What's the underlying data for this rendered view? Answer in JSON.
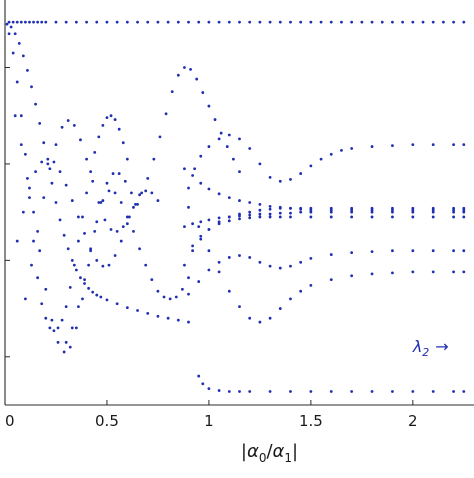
{
  "chart_data": {
    "type": "scatter",
    "title": "",
    "xlabel": "|α0/α1|",
    "xlabel_parts": {
      "bar_left": "|",
      "alpha": "α",
      "sub0": "0",
      "slash": "/",
      "alpha2": "α",
      "sub1": "1",
      "bar_right": "|"
    },
    "ylabel": "",
    "xlim": [
      0,
      2.3
    ],
    "ylim": [
      -2.0,
      2.2
    ],
    "grid": false,
    "x_ticks": [
      0,
      0.5,
      1,
      1.5,
      2
    ],
    "x_tick_labels": [
      "0",
      "0.5",
      "1",
      "1.5",
      "2"
    ],
    "y_ticks": [
      -1.5,
      -0.5,
      0.5,
      1.5
    ],
    "marker_color": "#1f2fb0",
    "annotation": {
      "text": "λ2 → ",
      "lambda": "λ",
      "sub": "2",
      "arrow": "→",
      "x": 2.0,
      "y": -1.45
    },
    "series": [
      {
        "x": [
          0.02,
          0.04,
          0.06,
          0.08,
          0.1,
          0.12,
          0.14,
          0.16,
          0.18,
          0.2,
          0.25,
          0.3,
          0.35,
          0.4,
          0.45,
          0.5,
          0.55,
          0.6,
          0.65,
          0.7,
          0.75,
          0.8,
          0.85,
          0.9,
          0.95,
          1.0,
          1.05,
          1.1,
          1.15,
          1.2,
          1.25,
          1.3,
          1.35,
          1.4,
          1.45,
          1.5,
          1.55,
          1.6,
          1.65,
          1.7,
          1.75,
          1.8,
          1.85,
          1.9,
          1.95,
          2.0,
          2.05,
          2.1,
          2.15,
          2.2,
          2.25
        ],
        "y": [
          1.97,
          1.97,
          1.97,
          1.97,
          1.97,
          1.97,
          1.97,
          1.97,
          1.97,
          1.97,
          1.97,
          1.97,
          1.97,
          1.97,
          1.97,
          1.97,
          1.97,
          1.97,
          1.97,
          1.97,
          1.97,
          1.97,
          1.97,
          1.97,
          1.97,
          1.97,
          1.97,
          1.97,
          1.97,
          1.97,
          1.97,
          1.97,
          1.97,
          1.97,
          1.97,
          1.97,
          1.97,
          1.97,
          1.97,
          1.97,
          1.97,
          1.97,
          1.97,
          1.97,
          1.97,
          1.97,
          1.97,
          1.97,
          1.97,
          1.97,
          1.97
        ]
      },
      {
        "x": [
          0.01,
          0.03,
          0.05,
          0.07,
          0.09,
          0.11,
          0.13,
          0.15,
          0.17,
          0.19,
          0.21,
          0.23,
          0.25,
          0.27,
          0.29,
          0.31,
          0.33,
          0.35,
          0.37,
          0.39,
          0.41,
          0.43,
          0.45,
          0.47,
          0.5,
          0.55,
          0.6,
          0.65,
          0.7,
          0.75,
          0.8,
          0.85,
          0.9
        ],
        "y": [
          1.95,
          1.92,
          1.85,
          1.75,
          1.62,
          1.47,
          1.3,
          1.12,
          0.92,
          0.72,
          0.5,
          0.3,
          0.1,
          -0.08,
          -0.24,
          -0.38,
          -0.5,
          -0.6,
          -0.68,
          -0.74,
          -0.79,
          -0.83,
          -0.86,
          -0.88,
          -0.91,
          -0.95,
          -0.99,
          -1.02,
          -1.05,
          -1.08,
          -1.1,
          -1.12,
          -1.14
        ]
      },
      {
        "x": [
          0.95,
          0.97,
          1.0,
          1.05,
          1.1,
          1.15,
          1.2,
          1.3,
          1.4,
          1.5,
          1.6,
          1.7,
          1.8,
          1.9,
          2.0,
          2.1,
          2.2,
          2.25
        ],
        "y": [
          -1.7,
          -1.78,
          -1.83,
          -1.85,
          -1.86,
          -1.86,
          -1.86,
          -1.86,
          -1.86,
          -1.86,
          -1.86,
          -1.86,
          -1.86,
          -1.86,
          -1.86,
          -1.86,
          -1.86,
          -1.86
        ]
      },
      {
        "x": [
          0.02,
          0.04,
          0.06,
          0.08,
          0.1,
          0.12,
          0.14,
          0.16,
          0.18,
          0.2,
          0.22,
          0.24,
          0.26,
          0.28,
          0.3,
          0.32,
          0.34,
          0.36,
          0.38,
          0.4,
          0.42,
          0.44,
          0.46,
          0.48,
          0.5,
          0.52,
          0.54,
          0.56,
          0.58,
          0.6
        ],
        "y": [
          1.85,
          1.65,
          1.35,
          1.0,
          0.6,
          0.15,
          -0.3,
          -0.68,
          -0.95,
          -1.1,
          -1.2,
          -1.23,
          -1.2,
          -1.12,
          -0.98,
          -0.78,
          -0.55,
          -0.3,
          -0.05,
          0.2,
          0.42,
          0.62,
          0.78,
          0.9,
          0.98,
          1.0,
          0.96,
          0.86,
          0.72,
          0.55
        ]
      },
      {
        "x": [
          0.05,
          0.08,
          0.11,
          0.14,
          0.17,
          0.2,
          0.23,
          0.26,
          0.29,
          0.32,
          0.35,
          0.38,
          0.41,
          0.44,
          0.47,
          0.5,
          0.53,
          0.56,
          0.59,
          0.62,
          0.65
        ],
        "y": [
          1.0,
          0.7,
          0.35,
          0.0,
          -0.4,
          -0.8,
          -1.12,
          -1.35,
          -1.45,
          -1.4,
          -1.2,
          -0.9,
          -0.55,
          -0.2,
          0.1,
          0.3,
          0.4,
          0.4,
          0.32,
          0.2,
          0.08
        ]
      },
      {
        "x": [
          0.06,
          0.09,
          0.12,
          0.15,
          0.18,
          0.21,
          0.24,
          0.27,
          0.3,
          0.33,
          0.36,
          0.39,
          0.42,
          0.45,
          0.48,
          0.51,
          0.54,
          0.57,
          0.6,
          0.63,
          0.66,
          0.69,
          0.72,
          0.75
        ],
        "y": [
          -0.3,
          0.0,
          0.25,
          0.42,
          0.52,
          0.55,
          0.52,
          0.42,
          0.28,
          0.12,
          -0.05,
          -0.22,
          -0.38,
          -0.5,
          -0.56,
          -0.55,
          -0.45,
          -0.3,
          -0.12,
          0.05,
          0.18,
          0.22,
          0.2,
          0.12
        ]
      },
      {
        "x": [
          0.1,
          0.13,
          0.16,
          0.19,
          0.22,
          0.25,
          0.28,
          0.31,
          0.34,
          0.37,
          0.4,
          0.43,
          0.46,
          0.49,
          0.52,
          0.55,
          0.58,
          0.61,
          0.64,
          0.67,
          0.7,
          0.73,
          0.76,
          0.79,
          0.82,
          0.85,
          0.88,
          0.91,
          0.94,
          0.97,
          1.0,
          1.03,
          1.06,
          1.09,
          1.12,
          1.15
        ],
        "y": [
          -0.9,
          -0.55,
          -0.2,
          0.15,
          0.45,
          0.7,
          0.88,
          0.95,
          0.9,
          0.75,
          0.55,
          0.32,
          0.1,
          -0.08,
          -0.18,
          -0.2,
          -0.15,
          -0.05,
          0.08,
          0.2,
          0.35,
          0.55,
          0.78,
          1.02,
          1.25,
          1.42,
          1.5,
          1.48,
          1.38,
          1.24,
          1.1,
          0.96,
          0.82,
          0.68,
          0.55,
          0.42
        ]
      },
      {
        "x": [
          0.3,
          0.33,
          0.36,
          0.39,
          0.42,
          0.45,
          0.48,
          0.51,
          0.54,
          0.57,
          0.6,
          0.63,
          0.66,
          0.69,
          0.72,
          0.75,
          0.78,
          0.81,
          0.84,
          0.87,
          0.9
        ],
        "y": [
          -1.35,
          -1.2,
          -0.98,
          -0.7,
          -0.4,
          -0.1,
          0.12,
          0.22,
          0.2,
          0.1,
          -0.05,
          -0.2,
          -0.38,
          -0.55,
          -0.7,
          -0.82,
          -0.88,
          -0.9,
          -0.88,
          -0.8,
          -0.68
        ]
      },
      {
        "x": [
          0.9,
          0.93,
          0.96,
          1.0,
          1.05,
          1.1,
          1.15,
          1.2,
          1.25,
          1.3,
          1.35,
          1.4,
          1.45,
          1.5,
          1.55,
          1.6,
          1.65,
          1.7,
          1.8,
          1.9,
          2.0,
          2.1,
          2.2,
          2.25
        ],
        "y": [
          0.25,
          0.45,
          0.58,
          0.68,
          0.76,
          0.8,
          0.76,
          0.66,
          0.5,
          0.36,
          0.32,
          0.34,
          0.4,
          0.48,
          0.55,
          0.6,
          0.64,
          0.66,
          0.68,
          0.69,
          0.7,
          0.7,
          0.7,
          0.7
        ]
      },
      {
        "x": [
          0.88,
          0.92,
          0.96,
          1.0,
          1.05,
          1.1,
          1.15,
          1.2,
          1.25,
          1.3,
          1.35,
          1.4,
          1.45,
          1.5,
          1.6,
          1.7,
          1.8,
          1.9,
          2.0,
          2.1,
          2.2,
          2.25
        ],
        "y": [
          -0.55,
          -0.4,
          -0.28,
          -0.18,
          -0.1,
          -0.05,
          -0.02,
          0.0,
          0.02,
          0.03,
          0.04,
          0.04,
          0.04,
          0.04,
          0.04,
          0.04,
          0.04,
          0.04,
          0.04,
          0.04,
          0.04,
          0.04
        ]
      },
      {
        "x": [
          0.88,
          0.92,
          0.96,
          1.0,
          1.05,
          1.1,
          1.15,
          1.2,
          1.25,
          1.3,
          1.35,
          1.4,
          1.45,
          1.5,
          1.6,
          1.7,
          1.8,
          1.9,
          2.0,
          2.1,
          2.2,
          2.25
        ],
        "y": [
          0.45,
          0.38,
          0.3,
          0.24,
          0.19,
          0.15,
          0.12,
          0.1,
          0.08,
          0.06,
          0.05,
          0.04,
          0.03,
          0.02,
          0.02,
          0.02,
          0.02,
          0.02,
          0.02,
          0.02,
          0.02,
          0.02
        ]
      },
      {
        "x": [
          0.88,
          0.92,
          0.96,
          1.0,
          1.05,
          1.1,
          1.15,
          1.2,
          1.25,
          1.3,
          1.35,
          1.4,
          1.45,
          1.5,
          1.6,
          1.7,
          1.8,
          1.9,
          2.0,
          2.1,
          2.2,
          2.25
        ],
        "y": [
          -0.15,
          -0.12,
          -0.1,
          -0.08,
          -0.06,
          -0.05,
          -0.04,
          -0.03,
          -0.02,
          -0.02,
          -0.01,
          -0.01,
          0.0,
          0.0,
          0.0,
          0.0,
          0.0,
          0.0,
          0.0,
          0.0,
          0.0,
          0.0
        ]
      },
      {
        "x": [
          0.9,
          0.95,
          1.0,
          1.05,
          1.1,
          1.15,
          1.2,
          1.25,
          1.3,
          1.35,
          1.4,
          1.45,
          1.5,
          1.6,
          1.7,
          1.8,
          1.9,
          2.0,
          2.1,
          2.2,
          2.25
        ],
        "y": [
          -0.85,
          -0.72,
          -0.6,
          -0.52,
          -0.47,
          -0.45,
          -0.47,
          -0.52,
          -0.56,
          -0.58,
          -0.56,
          -0.52,
          -0.48,
          -0.44,
          -0.42,
          -0.41,
          -0.4,
          -0.4,
          -0.4,
          -0.4,
          -0.4
        ]
      },
      {
        "x": [
          0.9,
          0.95,
          1.0,
          1.05,
          1.1,
          1.15,
          1.2,
          1.25,
          1.3,
          1.35,
          1.4,
          1.45,
          1.5,
          1.6,
          1.7,
          1.8,
          1.9,
          2.0,
          2.1,
          2.2,
          2.25
        ],
        "y": [
          0.05,
          -0.15,
          -0.4,
          -0.62,
          -0.82,
          -0.98,
          -1.1,
          -1.14,
          -1.1,
          -1.0,
          -0.9,
          -0.82,
          -0.76,
          -0.7,
          -0.66,
          -0.64,
          -0.63,
          -0.62,
          -0.62,
          -0.62,
          -0.62
        ]
      },
      {
        "x": [
          0.92,
          0.96,
          1.0,
          1.05,
          1.1,
          1.15,
          1.2,
          1.25,
          1.3,
          1.35,
          1.4,
          1.5,
          1.6,
          1.7,
          1.8,
          1.9,
          2.0,
          2.1,
          2.2,
          2.25
        ],
        "y": [
          -0.35,
          -0.25,
          -0.18,
          -0.12,
          -0.09,
          -0.07,
          -0.06,
          -0.05,
          -0.05,
          -0.05,
          -0.05,
          -0.05,
          -0.05,
          -0.05,
          -0.05,
          -0.05,
          -0.05,
          -0.05,
          -0.05,
          -0.05
        ]
      }
    ]
  }
}
